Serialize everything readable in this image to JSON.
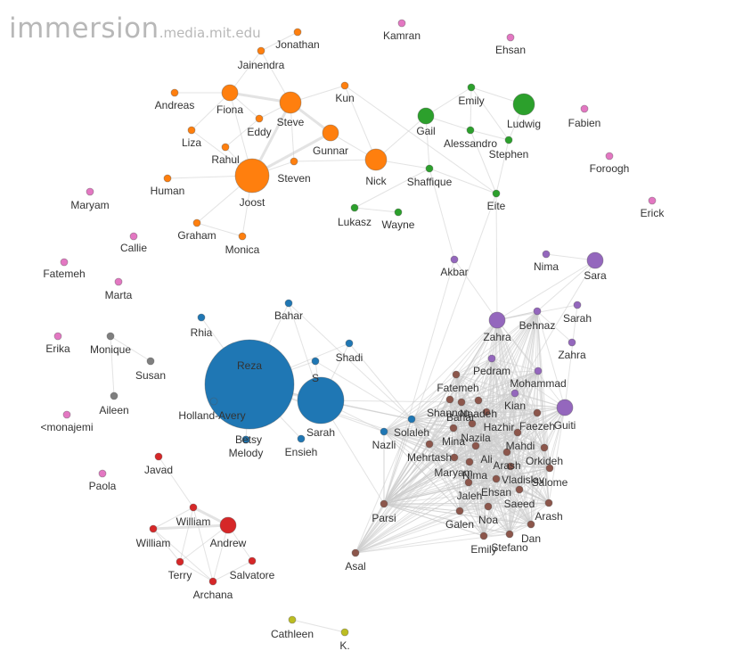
{
  "brand": {
    "main": "immersion",
    "domain": ".media.mit.edu"
  },
  "colors": {
    "orange": "#ff7f0e",
    "green": "#2ca02c",
    "pink": "#e377c2",
    "purple": "#9467bd",
    "blue": "#1f77b4",
    "grey": "#7f7f7f",
    "brown": "#8c564b",
    "red": "#d62728",
    "olive": "#bcbd22"
  },
  "nodes": [
    {
      "id": "jonathan",
      "label": "Jonathan",
      "group": "orange",
      "size": "small"
    },
    {
      "id": "jainendra",
      "label": "Jainendra",
      "group": "orange",
      "size": "small"
    },
    {
      "id": "kun",
      "label": "Kun",
      "group": "orange",
      "size": "small"
    },
    {
      "id": "andreas",
      "label": "Andreas",
      "group": "orange",
      "size": "small"
    },
    {
      "id": "fiona",
      "label": "Fiona",
      "group": "orange",
      "size": "medium"
    },
    {
      "id": "steve",
      "label": "Steve",
      "group": "orange",
      "size": "large"
    },
    {
      "id": "eddy",
      "label": "Eddy",
      "group": "orange",
      "size": "small"
    },
    {
      "id": "gunnar",
      "label": "Gunnar",
      "group": "orange",
      "size": "medium"
    },
    {
      "id": "liza",
      "label": "Liza",
      "group": "orange",
      "size": "small"
    },
    {
      "id": "rahul",
      "label": "Rahul",
      "group": "orange",
      "size": "small"
    },
    {
      "id": "steven",
      "label": "Steven",
      "group": "orange",
      "size": "small"
    },
    {
      "id": "nick",
      "label": "Nick",
      "group": "orange",
      "size": "large"
    },
    {
      "id": "human",
      "label": "Human",
      "group": "orange",
      "size": "small"
    },
    {
      "id": "joost",
      "label": "Joost",
      "group": "orange",
      "size": "xlarge"
    },
    {
      "id": "graham",
      "label": "Graham",
      "group": "orange",
      "size": "small"
    },
    {
      "id": "monica",
      "label": "Monica",
      "group": "orange",
      "size": "small"
    },
    {
      "id": "kamran",
      "label": "Kamran",
      "group": "pink",
      "size": "small"
    },
    {
      "id": "ehsan_top",
      "label": "Ehsan",
      "group": "pink",
      "size": "small"
    },
    {
      "id": "fabien",
      "label": "Fabien",
      "group": "pink",
      "size": "small"
    },
    {
      "id": "foroogh",
      "label": "Foroogh",
      "group": "pink",
      "size": "small"
    },
    {
      "id": "erick",
      "label": "Erick",
      "group": "pink",
      "size": "small"
    },
    {
      "id": "maryam_l",
      "label": "Maryam",
      "group": "pink",
      "size": "small"
    },
    {
      "id": "callie",
      "label": "Callie",
      "group": "pink",
      "size": "small"
    },
    {
      "id": "fatemeh_l",
      "label": "Fatemeh",
      "group": "pink",
      "size": "small"
    },
    {
      "id": "marta",
      "label": "Marta",
      "group": "pink",
      "size": "small"
    },
    {
      "id": "erika",
      "label": "Erika",
      "group": "pink",
      "size": "small"
    },
    {
      "id": "monajemi",
      "label": "<monajemi",
      "group": "pink",
      "size": "small"
    },
    {
      "id": "paola",
      "label": "Paola",
      "group": "pink",
      "size": "small"
    },
    {
      "id": "emily_g",
      "label": "Emily",
      "group": "green",
      "size": "small"
    },
    {
      "id": "ludwig",
      "label": "Ludwig",
      "group": "green",
      "size": "large"
    },
    {
      "id": "gail",
      "label": "Gail",
      "group": "green",
      "size": "medium"
    },
    {
      "id": "alessandro",
      "label": "Alessandro",
      "group": "green",
      "size": "small"
    },
    {
      "id": "stephen",
      "label": "Stephen",
      "group": "green",
      "size": "small"
    },
    {
      "id": "shaffique",
      "label": "Shaffique",
      "group": "green",
      "size": "small"
    },
    {
      "id": "eite",
      "label": "Eite",
      "group": "green",
      "size": "small"
    },
    {
      "id": "lukasz",
      "label": "Lukasz",
      "group": "green",
      "size": "small"
    },
    {
      "id": "wayne",
      "label": "Wayne",
      "group": "green",
      "size": "small"
    },
    {
      "id": "akbar",
      "label": "Akbar",
      "group": "purple",
      "size": "small"
    },
    {
      "id": "nima_p",
      "label": "Nima",
      "group": "purple",
      "size": "small"
    },
    {
      "id": "sara",
      "label": "Sara",
      "group": "purple",
      "size": "medium"
    },
    {
      "id": "zahra1",
      "label": "Zahra",
      "group": "purple",
      "size": "medium"
    },
    {
      "id": "behnaz",
      "label": "Behnaz",
      "group": "purple",
      "size": "small"
    },
    {
      "id": "sarah_p",
      "label": "Sarah",
      "group": "purple",
      "size": "small"
    },
    {
      "id": "zahra2",
      "label": "Zahra",
      "group": "purple",
      "size": "small"
    },
    {
      "id": "pedram",
      "label": "Pedram",
      "group": "purple",
      "size": "small"
    },
    {
      "id": "mohammad",
      "label": "Mohammad",
      "group": "purple",
      "size": "small"
    },
    {
      "id": "kian",
      "label": "Kian",
      "group": "purple",
      "size": "small"
    },
    {
      "id": "guiti",
      "label": "Guiti",
      "group": "purple",
      "size": "medium"
    },
    {
      "id": "bahar",
      "label": "Bahar",
      "group": "blue",
      "size": "small"
    },
    {
      "id": "rhia",
      "label": "Rhia",
      "group": "blue",
      "size": "small"
    },
    {
      "id": "reza",
      "label": "Reza",
      "group": "blue",
      "size": "huge"
    },
    {
      "id": "shadi",
      "label": "Shadi",
      "group": "blue",
      "size": "small"
    },
    {
      "id": "s_blue",
      "label": "S",
      "group": "blue",
      "size": "small"
    },
    {
      "id": "sarah_b",
      "label": "Sarah",
      "group": "blue",
      "size": "big"
    },
    {
      "id": "hollandavery",
      "label": "Holland-Avery",
      "group": "blue",
      "size": "small"
    },
    {
      "id": "betsy",
      "label": "Betsy",
      "group": "blue",
      "size": "small"
    },
    {
      "id": "melody",
      "label": "Melody",
      "group": "blue",
      "size": "small"
    },
    {
      "id": "ensieh",
      "label": "Ensieh",
      "group": "blue",
      "size": "small"
    },
    {
      "id": "nazli",
      "label": "Nazli",
      "group": "blue",
      "size": "small"
    },
    {
      "id": "solaleh",
      "label": "Solaleh",
      "group": "blue",
      "size": "small"
    },
    {
      "id": "monique",
      "label": "Monique",
      "group": "grey",
      "size": "small"
    },
    {
      "id": "susan",
      "label": "Susan",
      "group": "grey",
      "size": "small"
    },
    {
      "id": "aileen",
      "label": "Aileen",
      "group": "grey",
      "size": "small"
    },
    {
      "id": "fatemeh_b",
      "label": "Fatemeh",
      "group": "brown",
      "size": "small"
    },
    {
      "id": "shannon",
      "label": "Shannon",
      "group": "brown",
      "size": "small"
    },
    {
      "id": "nadeh",
      "label": "Naadeh",
      "group": "brown",
      "size": "small"
    },
    {
      "id": "bahar_b",
      "label": "Bahar",
      "group": "brown",
      "size": "small"
    },
    {
      "id": "hazhir",
      "label": "Hazhir",
      "group": "brown",
      "size": "small"
    },
    {
      "id": "faezeh",
      "label": "Faezeh",
      "group": "brown",
      "size": "small"
    },
    {
      "id": "mina",
      "label": "Mina",
      "group": "brown",
      "size": "small"
    },
    {
      "id": "nazila",
      "label": "Nazila",
      "group": "brown",
      "size": "small"
    },
    {
      "id": "mahdi",
      "label": "Mahdi",
      "group": "brown",
      "size": "small"
    },
    {
      "id": "mehrtash",
      "label": "Mehrtash",
      "group": "brown",
      "size": "small"
    },
    {
      "id": "ali",
      "label": "Ali",
      "group": "brown",
      "size": "small"
    },
    {
      "id": "orkideh",
      "label": "Orkideh",
      "group": "brown",
      "size": "small"
    },
    {
      "id": "arash1",
      "label": "Arash",
      "group": "brown",
      "size": "small"
    },
    {
      "id": "nima_b",
      "label": "Nima",
      "group": "brown",
      "size": "small"
    },
    {
      "id": "maryam_b",
      "label": "Maryam",
      "group": "brown",
      "size": "small"
    },
    {
      "id": "vladislav",
      "label": "Vladislav",
      "group": "brown",
      "size": "small"
    },
    {
      "id": "salome",
      "label": "Salome",
      "group": "brown",
      "size": "small"
    },
    {
      "id": "ehsan_b",
      "label": "Ehsan",
      "group": "brown",
      "size": "small"
    },
    {
      "id": "jaleh",
      "label": "Jaleh",
      "group": "brown",
      "size": "small"
    },
    {
      "id": "saeed",
      "label": "Saeed",
      "group": "brown",
      "size": "small"
    },
    {
      "id": "arash2",
      "label": "Arash",
      "group": "brown",
      "size": "small"
    },
    {
      "id": "parsi",
      "label": "Parsi",
      "group": "brown",
      "size": "small"
    },
    {
      "id": "galen",
      "label": "Galen",
      "group": "brown",
      "size": "small"
    },
    {
      "id": "noa",
      "label": "Noa",
      "group": "brown",
      "size": "small"
    },
    {
      "id": "dan",
      "label": "Dan",
      "group": "brown",
      "size": "small"
    },
    {
      "id": "emily_b",
      "label": "Emily",
      "group": "brown",
      "size": "small"
    },
    {
      "id": "stefano",
      "label": "Stefano",
      "group": "brown",
      "size": "small"
    },
    {
      "id": "asal",
      "label": "Asal",
      "group": "brown",
      "size": "small"
    },
    {
      "id": "javad",
      "label": "Javad",
      "group": "red",
      "size": "small"
    },
    {
      "id": "william1",
      "label": "William",
      "group": "red",
      "size": "small"
    },
    {
      "id": "william2",
      "label": "William",
      "group": "red",
      "size": "small"
    },
    {
      "id": "andrew",
      "label": "Andrew",
      "group": "red",
      "size": "medium"
    },
    {
      "id": "terry",
      "label": "Terry",
      "group": "red",
      "size": "small"
    },
    {
      "id": "salvatore",
      "label": "Salvatore",
      "group": "red",
      "size": "small"
    },
    {
      "id": "archana",
      "label": "Archana",
      "group": "red",
      "size": "small"
    },
    {
      "id": "cathleen",
      "label": "Cathleen",
      "group": "olive",
      "size": "small"
    },
    {
      "id": "k",
      "label": "K.",
      "group": "olive",
      "size": "small"
    }
  ]
}
